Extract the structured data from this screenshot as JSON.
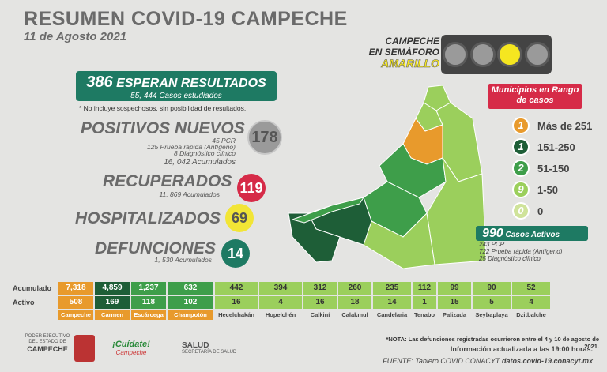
{
  "header": {
    "title": "RESUMEN COVID-19 CAMPECHE",
    "date": "11 de Agosto 2021"
  },
  "semaforo": {
    "line1": "CAMPECHE",
    "line2": "EN SEMÁFORO",
    "level": "AMARILLO",
    "active_light": 3
  },
  "esperan": {
    "number": "386",
    "label": "ESPERAN RESULTADOS",
    "cases": "55, 444 Casos estudiados"
  },
  "note": "* No incluye sospechosos, sin posibilidad de resultados.",
  "positivos": {
    "label": "POSITIVOS NUEVOS",
    "count": "178",
    "pcr": "45 PCR",
    "rapida": "125 Prueba rápida (Antígeno)",
    "clinico": "8 Diagnóstico clínico",
    "acumulados": "16, 042 Acumulados"
  },
  "recuperados": {
    "label": "RECUPERADOS",
    "count": "119",
    "acumulados": "11, 869 Acumulados"
  },
  "hospitalizados": {
    "label": "HOSPITALIZADOS",
    "count": "69"
  },
  "defunciones": {
    "label": "DEFUNCIONES",
    "count": "14",
    "acumulados": "1, 530 Acumulados"
  },
  "municipios": {
    "title": "Municipios en Rango de casos",
    "legend": [
      {
        "n": "1",
        "range": "Más de 251",
        "color": "#e89a2c"
      },
      {
        "n": "1",
        "range": "151-250",
        "color": "#1e5e37"
      },
      {
        "n": "2",
        "range": "51-150",
        "color": "#3e9e4a"
      },
      {
        "n": "9",
        "range": "1-50",
        "color": "#9bcf5c"
      },
      {
        "n": "0",
        "range": "0",
        "color": "#cfe39a"
      }
    ]
  },
  "activos": {
    "number": "990",
    "label": "Casos Activos",
    "pcr": "243 PCR",
    "rapida": "722 Prueba rápida (Antígeno)",
    "clinico": "25 Diagnóstico clínico"
  },
  "table": {
    "acumulado_label": "Acumulado",
    "activo_label": "Activo",
    "municipios": [
      {
        "name": "Campeche",
        "acum": "7,318",
        "activo": "508",
        "color": "#e89a2c"
      },
      {
        "name": "Carmen",
        "acum": "4,859",
        "activo": "169",
        "color": "#1e5e37"
      },
      {
        "name": "Escárcega",
        "acum": "1,237",
        "activo": "118",
        "color": "#3e9e4a"
      },
      {
        "name": "Champotón",
        "acum": "632",
        "activo": "102",
        "color": "#3e9e4a"
      },
      {
        "name": "Hecelchakán",
        "acum": "442",
        "activo": "16",
        "color": "#9bcf5c"
      },
      {
        "name": "Hopelchén",
        "acum": "394",
        "activo": "4",
        "color": "#9bcf5c"
      },
      {
        "name": "Calkiní",
        "acum": "312",
        "activo": "16",
        "color": "#9bcf5c"
      },
      {
        "name": "Calakmul",
        "acum": "260",
        "activo": "18",
        "color": "#9bcf5c"
      },
      {
        "name": "Candelaria",
        "acum": "235",
        "activo": "14",
        "color": "#9bcf5c"
      },
      {
        "name": "Tenabo",
        "acum": "112",
        "activo": "1",
        "color": "#9bcf5c"
      },
      {
        "name": "Palizada",
        "acum": "99",
        "activo": "15",
        "color": "#9bcf5c"
      },
      {
        "name": "Seybaplaya",
        "acum": "90",
        "activo": "5",
        "color": "#9bcf5c"
      },
      {
        "name": "Dzitbalche",
        "acum": "52",
        "activo": "4",
        "color": "#9bcf5c"
      }
    ]
  },
  "footer": {
    "poder": "PODER EJECUTIVO DEL ESTADO DE",
    "campeche": "CAMPECHE",
    "cuidate": "¡Cuídate!",
    "cuidate_sub": "Campeche",
    "salud": "SALUD",
    "secretaria": "SECRETARÍA DE SALUD",
    "nota": "*NOTA: Las defunciones registradas ocurrieron entre el 4 y 10 de agosto de 2021.",
    "info": "Información actualizada a las 19:00 horas.",
    "fuente": "FUENTE: Tablero COVID CONACYT",
    "url": "datos.covid-19.conacyt.mx"
  }
}
